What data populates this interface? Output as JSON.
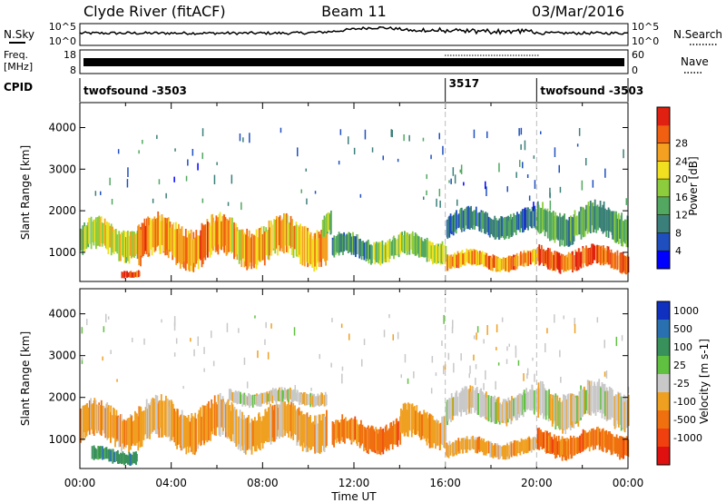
{
  "header": {
    "station": "Clyde River (fitACF)",
    "beam": "Beam 11",
    "date": "03/Mar/2016"
  },
  "strips": {
    "nsky": {
      "label": "N.Sky",
      "right_label": "N.Search",
      "tick_top": "10^5",
      "tick_bottom": "10^0",
      "right_tick_top": "10^5",
      "right_tick_bottom": "10^0"
    },
    "freq": {
      "label_line1": "Freq.",
      "label_line2": "[MHz]",
      "right_label": "Nave",
      "tick_top": "18",
      "tick_bottom": "8",
      "right_tick_top": "60",
      "right_tick_bottom": "0"
    },
    "cpid": {
      "label": "CPID",
      "segments": [
        {
          "text": "twofsound -3503",
          "start_hour": 0
        },
        {
          "text": "3517",
          "start_hour": 16
        },
        {
          "text": "twofsound -3503",
          "start_hour": 20
        }
      ]
    }
  },
  "chart_data": [
    {
      "type": "heatmap",
      "title": "",
      "ylabel": "Slant Range [km]",
      "xlim_hours": [
        0,
        24
      ],
      "ylim": [
        300,
        4600
      ],
      "yticks": [
        1000,
        2000,
        3000,
        4000
      ],
      "colorbar": {
        "label": "Power [dB]",
        "ticks": [
          "4",
          "8",
          "12",
          "16",
          "20",
          "24",
          "28"
        ],
        "range": [
          0,
          32
        ],
        "colors": [
          "#0000ff",
          "#1f4fbf",
          "#3b7f7a",
          "#52a860",
          "#8dcc3c",
          "#f0e020",
          "#f4a020",
          "#f06010",
          "#e02010"
        ]
      },
      "bands": [
        {
          "t0": 0.0,
          "t1": 2.5,
          "center": 1300,
          "width": 700,
          "value": 18
        },
        {
          "t0": 1.8,
          "t1": 2.6,
          "center": 500,
          "width": 150,
          "value": 27
        },
        {
          "t0": 2.5,
          "t1": 6.5,
          "center": 1250,
          "width": 900,
          "value": 24
        },
        {
          "t0": 6.5,
          "t1": 10.8,
          "center": 1250,
          "width": 850,
          "value": 22
        },
        {
          "t0": 10.6,
          "t1": 11.0,
          "center": 1700,
          "width": 500,
          "value": 14
        },
        {
          "t0": 11.0,
          "t1": 12.8,
          "center": 1100,
          "width": 500,
          "value": 10
        },
        {
          "t0": 12.8,
          "t1": 16.0,
          "center": 1100,
          "width": 500,
          "value": 16
        },
        {
          "t0": 16.0,
          "t1": 20.0,
          "center": 800,
          "width": 350,
          "value": 24
        },
        {
          "t0": 16.0,
          "t1": 20.0,
          "center": 1700,
          "width": 500,
          "value": 8
        },
        {
          "t0": 20.0,
          "t1": 24.0,
          "center": 850,
          "width": 450,
          "value": 27
        },
        {
          "t0": 20.0,
          "t1": 24.0,
          "center": 1700,
          "width": 700,
          "value": 12
        }
      ]
    },
    {
      "type": "heatmap",
      "title": "",
      "ylabel": "Slant Range [km]",
      "xlabel": "Time UT",
      "xlim_hours": [
        0,
        24
      ],
      "xticks": [
        "00:00",
        "04:00",
        "08:00",
        "12:00",
        "16:00",
        "20:00",
        "00:00"
      ],
      "ylim": [
        300,
        4600
      ],
      "yticks": [
        1000,
        2000,
        3000,
        4000
      ],
      "colorbar": {
        "label": "Velocity [m s-1]",
        "ticks": [
          "1000",
          "500",
          "100",
          "25",
          "-25",
          "-100",
          "-500",
          "-1000"
        ],
        "colors": [
          "#1030c0",
          "#2870b0",
          "#38905a",
          "#60c040",
          "#c8c8c8",
          "#f0a020",
          "#f07010",
          "#f04010",
          "#e01010"
        ]
      },
      "bands": [
        {
          "t0": 0.0,
          "t1": 2.5,
          "center": 1350,
          "width": 800,
          "category": -100
        },
        {
          "t0": 0.5,
          "t1": 2.5,
          "center": 600,
          "width": 300,
          "category": 100
        },
        {
          "t0": 2.5,
          "t1": 6.5,
          "center": 1350,
          "width": 900,
          "category": -100
        },
        {
          "t0": 6.5,
          "t1": 10.8,
          "center": 1300,
          "width": 850,
          "category": -100
        },
        {
          "t0": 6.5,
          "t1": 10.8,
          "center": 2000,
          "width": 300,
          "category": 25
        },
        {
          "t0": 11.0,
          "t1": 14.0,
          "center": 1100,
          "width": 600,
          "category": -500
        },
        {
          "t0": 14.0,
          "t1": 16.0,
          "center": 1300,
          "width": 700,
          "category": -100
        },
        {
          "t0": 16.0,
          "t1": 20.0,
          "center": 800,
          "width": 350,
          "category": -100
        },
        {
          "t0": 16.0,
          "t1": 20.0,
          "center": 1800,
          "width": 600,
          "category": 25
        },
        {
          "t0": 20.0,
          "t1": 24.0,
          "center": 900,
          "width": 500,
          "category": -500
        },
        {
          "t0": 20.0,
          "t1": 24.0,
          "center": 1800,
          "width": 800,
          "category": 25
        }
      ]
    }
  ]
}
